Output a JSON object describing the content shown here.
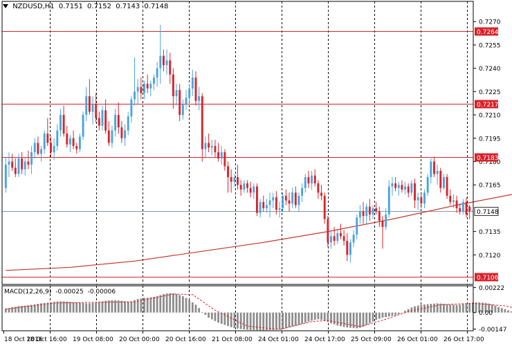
{
  "header": {
    "symbol": "NZDUSD,H1",
    "open": "0.7151",
    "high": "0.7152",
    "low": "0.7143",
    "close": "0.7148"
  },
  "colors": {
    "background": "#ffffff",
    "bull": "#4aa3df",
    "bear": "#d9232a",
    "level_line": "#d9232a",
    "ma_line": "#c0392b",
    "current_line": "#7f97b2",
    "histogram": "#8c8c8c",
    "signal": "#d9232a",
    "grid": "#000000"
  },
  "chart_data": [
    {
      "type": "candlestick",
      "symbol": "NZDUSD,H1",
      "y_ticks": [
        "0.7270",
        "0.7255",
        "0.7240",
        "0.7225",
        "0.7210",
        "0.7195",
        "0.7180",
        "0.7165",
        "0.7135",
        "0.7120"
      ],
      "ylim": [
        0.7101,
        0.7283
      ],
      "x_labels": [
        "18 Oct 2016",
        "18 Oct 16:00",
        "19 Oct 08:00",
        "20 Oct 00:00",
        "20 Oct 16:00",
        "21 Oct 08:00",
        "24 Oct 01:00",
        "24 Oct 17:00",
        "25 Oct 09:00",
        "26 Oct 01:00",
        "26 Oct 17:00"
      ],
      "levels": [
        {
          "price": 0.7264,
          "label": "0.7264"
        },
        {
          "price": 0.7217,
          "label": "0.7217"
        },
        {
          "price": 0.7183,
          "label": "0.7183"
        },
        {
          "price": 0.7106,
          "label": "0.7106"
        }
      ],
      "current_price": {
        "price": 0.7148,
        "label": "0.7148"
      },
      "candles": [
        [
          0.7163,
          0.7183,
          0.716,
          0.7178
        ],
        [
          0.7178,
          0.7186,
          0.717,
          0.718
        ],
        [
          0.718,
          0.7185,
          0.7174,
          0.7176
        ],
        [
          0.7176,
          0.7182,
          0.717,
          0.7172
        ],
        [
          0.7172,
          0.7185,
          0.717,
          0.7182
        ],
        [
          0.7182,
          0.7186,
          0.7172,
          0.7175
        ],
        [
          0.7175,
          0.7183,
          0.7171,
          0.718
        ],
        [
          0.718,
          0.7187,
          0.7175,
          0.7178
        ],
        [
          0.7178,
          0.719,
          0.7172,
          0.7186
        ],
        [
          0.7186,
          0.7195,
          0.7182,
          0.7192
        ],
        [
          0.7192,
          0.7196,
          0.7184,
          0.7185
        ],
        [
          0.7185,
          0.719,
          0.718,
          0.7188
        ],
        [
          0.7188,
          0.72,
          0.7185,
          0.7198
        ],
        [
          0.7198,
          0.7208,
          0.719,
          0.7192
        ],
        [
          0.7192,
          0.7196,
          0.7183,
          0.7186
        ],
        [
          0.7186,
          0.7195,
          0.7181,
          0.719
        ],
        [
          0.719,
          0.7204,
          0.7187,
          0.72
        ],
        [
          0.72,
          0.7214,
          0.7196,
          0.721
        ],
        [
          0.721,
          0.7216,
          0.7196,
          0.7198
        ],
        [
          0.7198,
          0.7203,
          0.7189,
          0.7191
        ],
        [
          0.7191,
          0.7197,
          0.7186,
          0.7195
        ],
        [
          0.7195,
          0.72,
          0.7188,
          0.719
        ],
        [
          0.719,
          0.7192,
          0.7185,
          0.7188
        ],
        [
          0.7188,
          0.7198,
          0.7186,
          0.7196
        ],
        [
          0.7196,
          0.7212,
          0.7194,
          0.721
        ],
        [
          0.721,
          0.7228,
          0.7206,
          0.7222
        ],
        [
          0.7222,
          0.7233,
          0.721,
          0.7212
        ],
        [
          0.7212,
          0.7222,
          0.7204,
          0.7217
        ],
        [
          0.7217,
          0.7224,
          0.7205,
          0.7208
        ],
        [
          0.7208,
          0.7212,
          0.72,
          0.7203
        ],
        [
          0.7203,
          0.7216,
          0.72,
          0.7213
        ],
        [
          0.7213,
          0.722,
          0.7198,
          0.72
        ],
        [
          0.72,
          0.7206,
          0.719,
          0.7192
        ],
        [
          0.7192,
          0.7203,
          0.7189,
          0.72
        ],
        [
          0.72,
          0.7214,
          0.7196,
          0.721
        ],
        [
          0.721,
          0.7218,
          0.7198,
          0.7202
        ],
        [
          0.7202,
          0.7206,
          0.7192,
          0.7195
        ],
        [
          0.7195,
          0.7204,
          0.719,
          0.72
        ],
        [
          0.72,
          0.7212,
          0.7197,
          0.7209
        ],
        [
          0.7209,
          0.7222,
          0.7205,
          0.722
        ],
        [
          0.722,
          0.7247,
          0.7216,
          0.7225
        ],
        [
          0.7225,
          0.7233,
          0.7217,
          0.7228
        ],
        [
          0.7228,
          0.7234,
          0.722,
          0.7224
        ],
        [
          0.7224,
          0.7232,
          0.722,
          0.723
        ],
        [
          0.723,
          0.7236,
          0.7224,
          0.7227
        ],
        [
          0.7227,
          0.7232,
          0.7222,
          0.723
        ],
        [
          0.723,
          0.7236,
          0.7226,
          0.7234
        ],
        [
          0.7234,
          0.7244,
          0.7228,
          0.724
        ],
        [
          0.724,
          0.7268,
          0.723,
          0.7248
        ],
        [
          0.7248,
          0.7252,
          0.7238,
          0.7242
        ],
        [
          0.7242,
          0.7252,
          0.7236,
          0.7245
        ],
        [
          0.7245,
          0.725,
          0.723,
          0.7236
        ],
        [
          0.7236,
          0.724,
          0.7214,
          0.7222
        ],
        [
          0.7222,
          0.723,
          0.7216,
          0.7226
        ],
        [
          0.7226,
          0.723,
          0.7206,
          0.721
        ],
        [
          0.721,
          0.722,
          0.7207,
          0.7217
        ],
        [
          0.7217,
          0.7226,
          0.7213,
          0.7221
        ],
        [
          0.7221,
          0.723,
          0.7218,
          0.7227
        ],
        [
          0.7227,
          0.7239,
          0.7222,
          0.7234
        ],
        [
          0.7234,
          0.7238,
          0.7216,
          0.7219
        ],
        [
          0.7219,
          0.7228,
          0.7213,
          0.7222
        ],
        [
          0.7222,
          0.7224,
          0.718,
          0.7188
        ],
        [
          0.7188,
          0.7196,
          0.7182,
          0.7192
        ],
        [
          0.7192,
          0.7198,
          0.7186,
          0.7189
        ],
        [
          0.7189,
          0.7194,
          0.7184,
          0.719
        ],
        [
          0.719,
          0.7194,
          0.7183,
          0.7186
        ],
        [
          0.7186,
          0.7192,
          0.718,
          0.7182
        ],
        [
          0.7182,
          0.719,
          0.7178,
          0.7186
        ],
        [
          0.7186,
          0.7188,
          0.7174,
          0.7177
        ],
        [
          0.7177,
          0.718,
          0.716,
          0.717
        ],
        [
          0.717,
          0.7175,
          0.716,
          0.7167
        ],
        [
          0.7167,
          0.7172,
          0.7164,
          0.717
        ],
        [
          0.717,
          0.7178,
          0.7162,
          0.7165
        ],
        [
          0.7165,
          0.7168,
          0.7158,
          0.7162
        ],
        [
          0.7162,
          0.7168,
          0.716,
          0.7166
        ],
        [
          0.7166,
          0.7168,
          0.716,
          0.7163
        ],
        [
          0.7163,
          0.7167,
          0.7157,
          0.716
        ],
        [
          0.716,
          0.7166,
          0.7156,
          0.7164
        ],
        [
          0.7164,
          0.7166,
          0.7145,
          0.7147
        ],
        [
          0.7147,
          0.7156,
          0.7144,
          0.7154
        ],
        [
          0.7154,
          0.7158,
          0.7148,
          0.715
        ],
        [
          0.715,
          0.7156,
          0.7147,
          0.7152
        ],
        [
          0.7152,
          0.716,
          0.7144,
          0.7155
        ],
        [
          0.7155,
          0.716,
          0.715,
          0.7157
        ],
        [
          0.7157,
          0.7161,
          0.7146,
          0.7149
        ],
        [
          0.7149,
          0.7154,
          0.7144,
          0.715
        ],
        [
          0.715,
          0.716,
          0.7148,
          0.7158
        ],
        [
          0.7158,
          0.7162,
          0.7152,
          0.7155
        ],
        [
          0.7155,
          0.716,
          0.7148,
          0.7153
        ],
        [
          0.7153,
          0.7163,
          0.715,
          0.716
        ],
        [
          0.716,
          0.7164,
          0.715,
          0.7152
        ],
        [
          0.7152,
          0.716,
          0.7148,
          0.7158
        ],
        [
          0.7158,
          0.7166,
          0.7154,
          0.7163
        ],
        [
          0.7163,
          0.7172,
          0.716,
          0.717
        ],
        [
          0.717,
          0.7174,
          0.7163,
          0.7166
        ],
        [
          0.7166,
          0.7174,
          0.7162,
          0.7171
        ],
        [
          0.7171,
          0.7175,
          0.7164,
          0.7166
        ],
        [
          0.7166,
          0.7168,
          0.7156,
          0.716
        ],
        [
          0.716,
          0.7165,
          0.7155,
          0.7158
        ],
        [
          0.7158,
          0.716,
          0.714,
          0.7143
        ],
        [
          0.7143,
          0.7145,
          0.7125,
          0.7128
        ],
        [
          0.7128,
          0.7135,
          0.7124,
          0.7132
        ],
        [
          0.7132,
          0.7138,
          0.7126,
          0.7129
        ],
        [
          0.7129,
          0.7136,
          0.7127,
          0.7134
        ],
        [
          0.7134,
          0.714,
          0.713,
          0.7132
        ],
        [
          0.7132,
          0.7136,
          0.7126,
          0.7129
        ],
        [
          0.7129,
          0.7134,
          0.7116,
          0.712
        ],
        [
          0.712,
          0.713,
          0.7115,
          0.7128
        ],
        [
          0.7128,
          0.7136,
          0.7125,
          0.7133
        ],
        [
          0.7133,
          0.7146,
          0.713,
          0.7144
        ],
        [
          0.7144,
          0.7152,
          0.714,
          0.7148
        ],
        [
          0.7148,
          0.7154,
          0.714,
          0.7145
        ],
        [
          0.7145,
          0.7153,
          0.714,
          0.7151
        ],
        [
          0.7151,
          0.7156,
          0.7142,
          0.7146
        ],
        [
          0.7146,
          0.7152,
          0.7143,
          0.715
        ],
        [
          0.715,
          0.7154,
          0.7146,
          0.7148
        ],
        [
          0.7148,
          0.7151,
          0.7138,
          0.7142
        ],
        [
          0.7142,
          0.7145,
          0.7124,
          0.7138
        ],
        [
          0.7138,
          0.715,
          0.7136,
          0.7146
        ],
        [
          0.7146,
          0.7168,
          0.7144,
          0.7164
        ],
        [
          0.7164,
          0.717,
          0.7158,
          0.7166
        ],
        [
          0.7166,
          0.717,
          0.7161,
          0.7163
        ],
        [
          0.7163,
          0.7167,
          0.7158,
          0.7165
        ],
        [
          0.7165,
          0.7168,
          0.716,
          0.7162
        ],
        [
          0.7162,
          0.7167,
          0.7159,
          0.7164
        ],
        [
          0.7164,
          0.7166,
          0.7157,
          0.716
        ],
        [
          0.716,
          0.7168,
          0.7158,
          0.7166
        ],
        [
          0.7166,
          0.7169,
          0.715,
          0.7155
        ],
        [
          0.7155,
          0.716,
          0.7149,
          0.7157
        ],
        [
          0.7157,
          0.716,
          0.715,
          0.7153
        ],
        [
          0.7153,
          0.7162,
          0.715,
          0.716
        ],
        [
          0.716,
          0.7172,
          0.7158,
          0.717
        ],
        [
          0.717,
          0.7182,
          0.7166,
          0.718
        ],
        [
          0.718,
          0.7183,
          0.717,
          0.7172
        ],
        [
          0.7172,
          0.7178,
          0.7165,
          0.7174
        ],
        [
          0.7174,
          0.7176,
          0.716,
          0.7163
        ],
        [
          0.7163,
          0.7172,
          0.7162,
          0.717
        ],
        [
          0.717,
          0.7172,
          0.7156,
          0.7158
        ],
        [
          0.7158,
          0.7162,
          0.7152,
          0.7154
        ],
        [
          0.7154,
          0.7159,
          0.715,
          0.7155
        ],
        [
          0.7155,
          0.7158,
          0.7147,
          0.715
        ],
        [
          0.715,
          0.7153,
          0.7146,
          0.7148
        ],
        [
          0.7148,
          0.7156,
          0.7146,
          0.7154
        ],
        [
          0.7154,
          0.7157,
          0.7144,
          0.7146
        ],
        [
          0.7151,
          0.7152,
          0.7143,
          0.7148
        ]
      ],
      "moving_average": [
        [
          0,
          0.711
        ],
        [
          20,
          0.7112
        ],
        [
          40,
          0.7116
        ],
        [
          60,
          0.7122
        ],
        [
          80,
          0.7128
        ],
        [
          100,
          0.7135
        ],
        [
          120,
          0.7143
        ],
        [
          140,
          0.7152
        ],
        [
          160,
          0.716
        ],
        [
          175,
          0.7165
        ]
      ]
    },
    {
      "type": "histogram",
      "title": "MACD(12,26,9)",
      "values": [
        "-0.00025",
        "-0.00006"
      ],
      "y_ticks": [
        "0.00222",
        "0.00",
        "-0.00147"
      ],
      "ylim": [
        -0.00162,
        0.00238
      ],
      "histogram": [
        0.00035,
        0.0004,
        0.00048,
        0.00052,
        0.00058,
        0.0006,
        0.00062,
        0.00065,
        0.00068,
        0.00072,
        0.00078,
        0.00082,
        0.00085,
        0.00088,
        0.00092,
        0.00095,
        0.00098,
        0.001,
        0.001,
        0.00098,
        0.00095,
        0.00092,
        0.0009,
        0.00088,
        0.00085,
        0.00082,
        0.00082,
        0.00085,
        0.0009,
        0.00095,
        0.001,
        0.00105,
        0.00108,
        0.0011,
        0.0011,
        0.00108,
        0.00105,
        0.001,
        0.00098,
        0.001,
        0.0011,
        0.0012,
        0.00125,
        0.0013,
        0.00132,
        0.00135,
        0.0014,
        0.00145,
        0.00155,
        0.00165,
        0.0017,
        0.00172,
        0.0017,
        0.00165,
        0.00155,
        0.00145,
        0.0013,
        0.0011,
        0.0009,
        0.0007,
        0.0004,
        5e-05,
        -0.0002,
        -0.00045,
        -0.0006,
        -0.00075,
        -0.0009,
        -0.001,
        -0.0011,
        -0.0012,
        -0.0013,
        -0.00138,
        -0.00142,
        -0.00146,
        -0.0015,
        -0.00152,
        -0.00155,
        -0.00156,
        -0.00157,
        -0.00158,
        -0.00158,
        -0.00157,
        -0.00156,
        -0.00155,
        -0.00153,
        -0.0015,
        -0.00146,
        -0.0014,
        -0.00132,
        -0.00125,
        -0.00118,
        -0.0011,
        -0.001,
        -0.0009,
        -0.0008,
        -0.00072,
        -0.00065,
        -0.0006,
        -0.00065,
        -0.00075,
        -0.00085,
        -0.00095,
        -0.00105,
        -0.00115,
        -0.00122,
        -0.00128,
        -0.00132,
        -0.00135,
        -0.00138,
        -0.0014,
        -0.00135,
        -0.00125,
        -0.0011,
        -0.00095,
        -0.0008,
        -0.00065,
        -0.00055,
        -0.00045,
        -0.0004,
        -0.00035,
        -0.0003,
        -0.00025,
        -0.00015,
        0.0,
        0.00015,
        0.0003,
        0.00045,
        0.00055,
        0.00062,
        0.00068,
        0.00072,
        0.00075,
        0.00078,
        0.0008,
        0.00082,
        0.0008,
        0.00078,
        0.00075,
        0.00072,
        0.0007,
        0.00068,
        0.0007,
        0.00075,
        0.0008,
        0.00085,
        0.00088,
        0.0009,
        0.0009,
        0.00088,
        0.00085,
        0.0008,
        0.00072,
        0.00062,
        0.0005,
        0.0004,
        0.0003,
        0.0002,
        0.0001,
        0.0,
        -0.0001,
        -0.00015,
        -0.00025
      ],
      "signal": [
        [
          0,
          0.0003
        ],
        [
          15,
          0.00085
        ],
        [
          25,
          0.0009
        ],
        [
          40,
          0.00095
        ],
        [
          52,
          0.00165
        ],
        [
          58,
          0.0016
        ],
        [
          65,
          0.0002
        ],
        [
          75,
          -0.0012
        ],
        [
          85,
          -0.0015
        ],
        [
          95,
          -0.0008
        ],
        [
          100,
          -0.0007
        ],
        [
          110,
          -0.00125
        ],
        [
          118,
          -0.0006
        ],
        [
          125,
          0.0001
        ],
        [
          135,
          0.0007
        ],
        [
          145,
          0.00082
        ],
        [
          155,
          0.0006
        ],
        [
          163,
          5e-05
        ],
        [
          171,
          -6e-05
        ]
      ]
    }
  ]
}
